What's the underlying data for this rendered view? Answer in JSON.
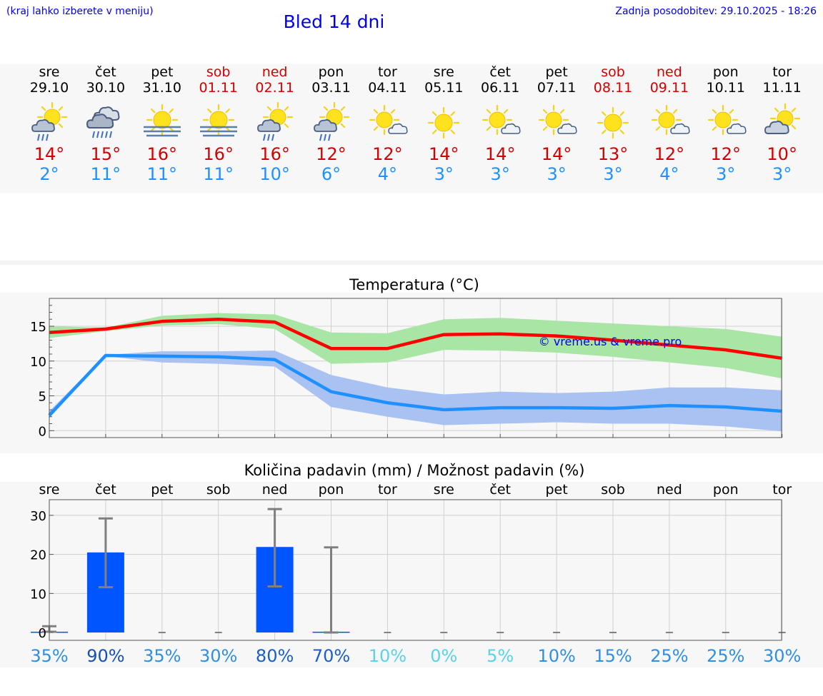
{
  "header": {
    "hint": "(kraj lahko izberete v meniju)",
    "title": "Bled 14 dni",
    "updated": "Zadnja posodobitev: 29.10.2025 - 18:26"
  },
  "colors": {
    "title_blue": "#0000ee",
    "max_red": "#d40000",
    "min_blue": "#1e90ff",
    "band_green": "#a9e6a6",
    "band_blue": "#a9c2f2",
    "bar_blue": "#0055ff"
  },
  "days": [
    {
      "name": "sre",
      "date": "29.10",
      "icon": "sun-cloud-rain-icon",
      "max": "14°",
      "min": "2°",
      "weekend": false
    },
    {
      "name": "čet",
      "date": "30.10",
      "icon": "cloud-heavy-rain-icon",
      "max": "15°",
      "min": "11°",
      "weekend": false
    },
    {
      "name": "pet",
      "date": "31.10",
      "icon": "sun-fog-icon",
      "max": "16°",
      "min": "11°",
      "weekend": false
    },
    {
      "name": "sob",
      "date": "01.11",
      "icon": "sun-fog-icon",
      "max": "16°",
      "min": "11°",
      "weekend": true
    },
    {
      "name": "ned",
      "date": "02.11",
      "icon": "sun-cloud-rain-icon",
      "max": "16°",
      "min": "10°",
      "weekend": true
    },
    {
      "name": "pon",
      "date": "03.11",
      "icon": "sun-cloud-rain-icon",
      "max": "12°",
      "min": "6°",
      "weekend": false
    },
    {
      "name": "tor",
      "date": "04.11",
      "icon": "sun-small-cloud-icon",
      "max": "12°",
      "min": "4°",
      "weekend": false
    },
    {
      "name": "sre",
      "date": "05.11",
      "icon": "sun-icon",
      "max": "14°",
      "min": "3°",
      "weekend": false
    },
    {
      "name": "čet",
      "date": "06.11",
      "icon": "sun-small-cloud-icon",
      "max": "14°",
      "min": "3°",
      "weekend": false
    },
    {
      "name": "pet",
      "date": "07.11",
      "icon": "sun-small-cloud-icon",
      "max": "14°",
      "min": "3°",
      "weekend": false
    },
    {
      "name": "sob",
      "date": "08.11",
      "icon": "sun-icon",
      "max": "13°",
      "min": "3°",
      "weekend": true
    },
    {
      "name": "ned",
      "date": "09.11",
      "icon": "sun-small-cloud-icon",
      "max": "12°",
      "min": "4°",
      "weekend": true
    },
    {
      "name": "pon",
      "date": "10.11",
      "icon": "sun-small-cloud-icon",
      "max": "12°",
      "min": "3°",
      "weekend": false
    },
    {
      "name": "tor",
      "date": "11.11",
      "icon": "sun-cloud-icon",
      "max": "10°",
      "min": "3°",
      "weekend": false
    }
  ],
  "chart_data": [
    {
      "type": "line",
      "title": "Temperatura (°C)",
      "x": [
        0,
        1,
        2,
        3,
        4,
        5,
        6,
        7,
        8,
        9,
        10,
        11,
        12,
        13
      ],
      "ylim": [
        -1,
        19
      ],
      "yticks": [
        0,
        5,
        10,
        15
      ],
      "series": [
        {
          "name": "max",
          "color": "#ff0000",
          "values": [
            14.1,
            14.6,
            15.7,
            16.0,
            15.6,
            11.8,
            11.8,
            13.8,
            13.9,
            13.6,
            13.0,
            12.3,
            11.6,
            10.4
          ],
          "band_low": [
            13.3,
            14.3,
            15.1,
            15.3,
            14.6,
            9.6,
            9.8,
            11.6,
            11.5,
            11.2,
            10.6,
            9.8,
            9.0,
            7.5
          ],
          "band_high": [
            15.0,
            14.8,
            16.5,
            16.9,
            16.7,
            14.1,
            14.0,
            16.0,
            16.2,
            15.8,
            15.4,
            15.0,
            14.6,
            13.5
          ]
        },
        {
          "name": "min",
          "color": "#1e90ff",
          "values": [
            2.2,
            10.8,
            10.7,
            10.6,
            10.2,
            5.6,
            4.0,
            3.0,
            3.3,
            3.3,
            3.2,
            3.6,
            3.4,
            2.8
          ],
          "band_low": [
            1.8,
            10.7,
            9.8,
            9.6,
            9.2,
            3.4,
            2.0,
            0.8,
            1.0,
            1.2,
            1.0,
            1.0,
            0.6,
            -0.1
          ],
          "band_high": [
            2.8,
            10.9,
            11.4,
            11.4,
            11.5,
            8.0,
            6.2,
            5.2,
            5.6,
            5.4,
            5.6,
            6.2,
            6.2,
            5.8
          ]
        }
      ],
      "watermark": "© vreme.us & vreme.pro"
    },
    {
      "type": "bar",
      "title": "Količina padavin (mm) / Možnost padavin (%)",
      "categories": [
        "sre",
        "čet",
        "pet",
        "sob",
        "ned",
        "pon",
        "tor",
        "sre",
        "čet",
        "pet",
        "sob",
        "ned",
        "pon",
        "tor"
      ],
      "ylim": [
        -2,
        34
      ],
      "yticks": [
        0,
        10,
        20,
        30
      ],
      "values": [
        0.2,
        20.5,
        0,
        0,
        21.9,
        0.2,
        0,
        0,
        0,
        0,
        0,
        0,
        0,
        0
      ],
      "error_low": [
        0.2,
        11.6,
        0,
        0,
        11.8,
        0,
        0,
        0,
        0,
        0,
        0,
        0,
        0,
        0
      ],
      "error_high": [
        1.6,
        29.2,
        0,
        0,
        31.6,
        21.8,
        0,
        0,
        0,
        0,
        0,
        0,
        0,
        0
      ],
      "probability": [
        "35%",
        "90%",
        "35%",
        "30%",
        "80%",
        "70%",
        "10%",
        "0%",
        "5%",
        "10%",
        "15%",
        "25%",
        "25%",
        "30%"
      ],
      "probability_colors": [
        "#2f8fe0",
        "#1450b8",
        "#2f8fe0",
        "#2f8fe0",
        "#1a5fc8",
        "#1a5fc8",
        "#58d3e8",
        "#58d3e8",
        "#58d3e8",
        "#2f8fe0",
        "#2f8fe0",
        "#2f8fe0",
        "#2f8fe0",
        "#2f8fe0"
      ]
    }
  ]
}
